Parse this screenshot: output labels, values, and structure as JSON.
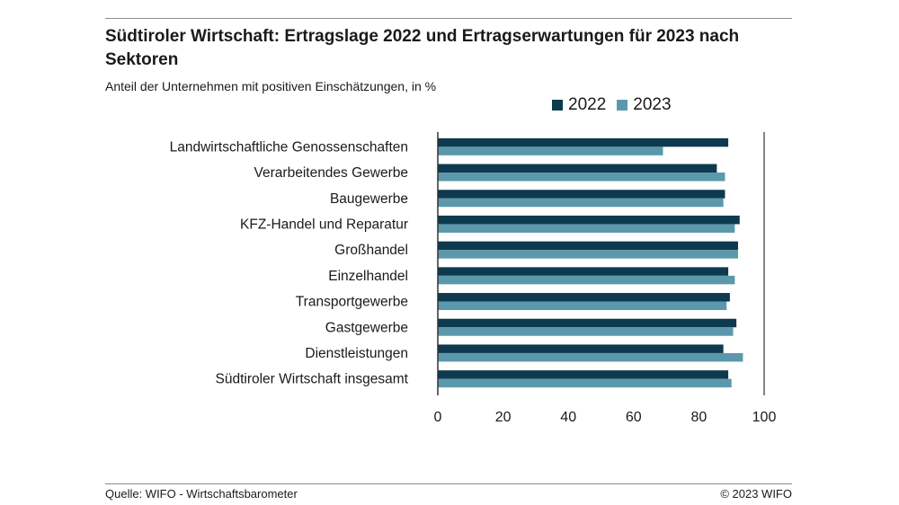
{
  "header": {
    "title": "Südtiroler Wirtschaft: Ertragslage 2022 und Ertragserwartungen für 2023 nach Sektoren",
    "subtitle": "Anteil der Unternehmen mit positiven Einschätzungen, in %"
  },
  "footer": {
    "source": "Quelle: WIFO - Wirtschaftsbarometer",
    "copyright": "© 2023 WIFO"
  },
  "colors": {
    "series_2022": "#0d3a4e",
    "series_2023": "#5b98ab",
    "axis": "#333333"
  },
  "chart_data": {
    "type": "bar",
    "orientation": "horizontal",
    "categories": [
      "Landwirtschaftliche Genossenschaften",
      "Verarbeitendes Gewerbe",
      "Baugewerbe",
      "KFZ-Handel und Reparatur",
      "Großhandel",
      "Einzelhandel",
      "Transportgewerbe",
      "Gastgewerbe",
      "Dienstleistungen",
      "Südtiroler Wirtschaft insgesamt"
    ],
    "series": [
      {
        "name": "2022",
        "values": [
          89,
          85.5,
          88,
          92.5,
          92,
          89,
          89.5,
          91.5,
          87.5,
          89
        ]
      },
      {
        "name": "2023",
        "values": [
          69,
          88,
          87.5,
          91,
          92,
          91,
          88.5,
          90.5,
          93.5,
          90
        ]
      }
    ],
    "xlim": [
      0,
      100
    ],
    "xticks": [
      "0",
      "20",
      "40",
      "60",
      "80",
      "100"
    ],
    "legend_position": "top-right",
    "grid": false
  }
}
